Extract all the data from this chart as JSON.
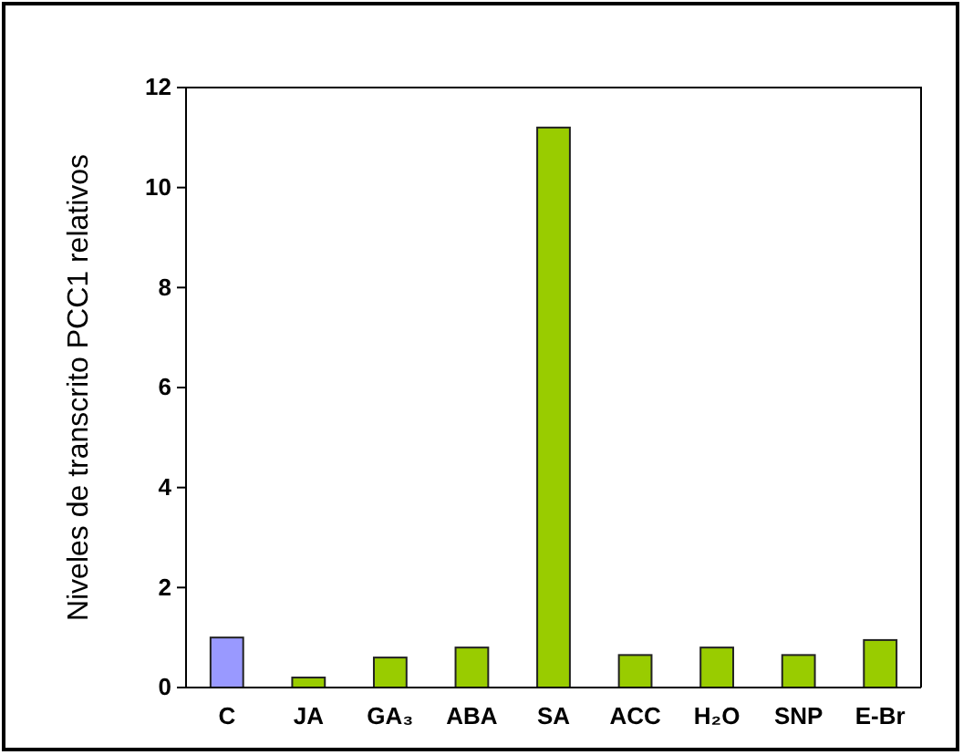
{
  "chart_data": {
    "type": "bar",
    "ylabel": "Niveles de transcrito PCC1 relativos",
    "categories": [
      "C",
      "JA",
      "GA₃",
      "ABA",
      "SA",
      "ACC",
      "H₂O",
      "SNP",
      "E-Br"
    ],
    "values": [
      1.0,
      0.2,
      0.6,
      0.8,
      11.2,
      0.65,
      0.8,
      0.65,
      0.95
    ],
    "colors": [
      "#9999ff",
      "#99cc00",
      "#99cc00",
      "#99cc00",
      "#99cc00",
      "#99cc00",
      "#99cc00",
      "#99cc00",
      "#99cc00"
    ],
    "ylim": [
      0,
      12
    ],
    "yticks": [
      0,
      2,
      4,
      6,
      8,
      10,
      12
    ],
    "grid": false
  }
}
